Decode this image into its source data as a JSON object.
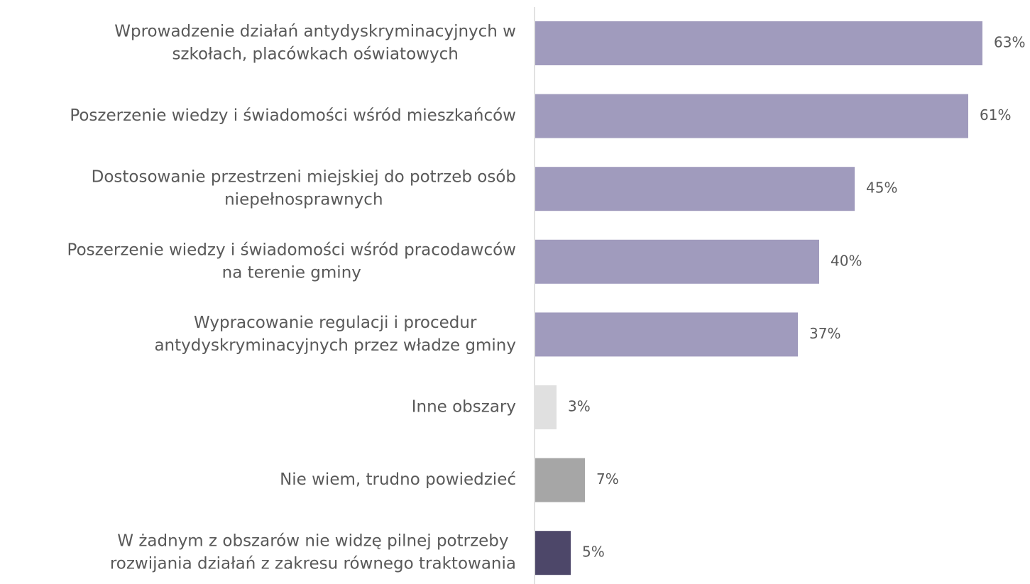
{
  "chart_data": {
    "type": "bar",
    "orientation": "horizontal",
    "title": "",
    "xlabel": "",
    "ylabel": "",
    "xlim": [
      0,
      70
    ],
    "grid": false,
    "categories": [
      [
        "Wprowadzenie działań antydyskryminacyjnych w",
        "szkołach, placówkach oświatowych"
      ],
      [
        "Poszerzenie wiedzy i świadomości wśród mieszkańców"
      ],
      [
        "Dostosowanie przestrzeni miejskiej do potrzeb osób",
        "niepełnosprawnych"
      ],
      [
        "Poszerzenie wiedzy i świadomości wśród pracodawców",
        "na terenie gminy"
      ],
      [
        "Wypracowanie regulacji i procedur",
        "antydyskryminacyjnych przez władze gminy"
      ],
      [
        "Inne obszary"
      ],
      [
        "Nie wiem, trudno powiedzieć"
      ],
      [
        "W żadnym z obszarów nie widzę pilnej potrzeby",
        "rozwijania działań z zakresu równego traktowania"
      ]
    ],
    "values": [
      63,
      61,
      45,
      40,
      37,
      3,
      7,
      5
    ],
    "value_labels": [
      "63%",
      "61%",
      "45%",
      "40%",
      "37%",
      "3%",
      "7%",
      "5%"
    ],
    "bar_colors": [
      "#A09BBD",
      "#A09BBD",
      "#A09BBD",
      "#A09BBD",
      "#A09BBD",
      "#E0E0E0",
      "#A6A6A6",
      "#4D4769"
    ],
    "axis_color": "#D9D9D9",
    "text_color": "#595959"
  }
}
